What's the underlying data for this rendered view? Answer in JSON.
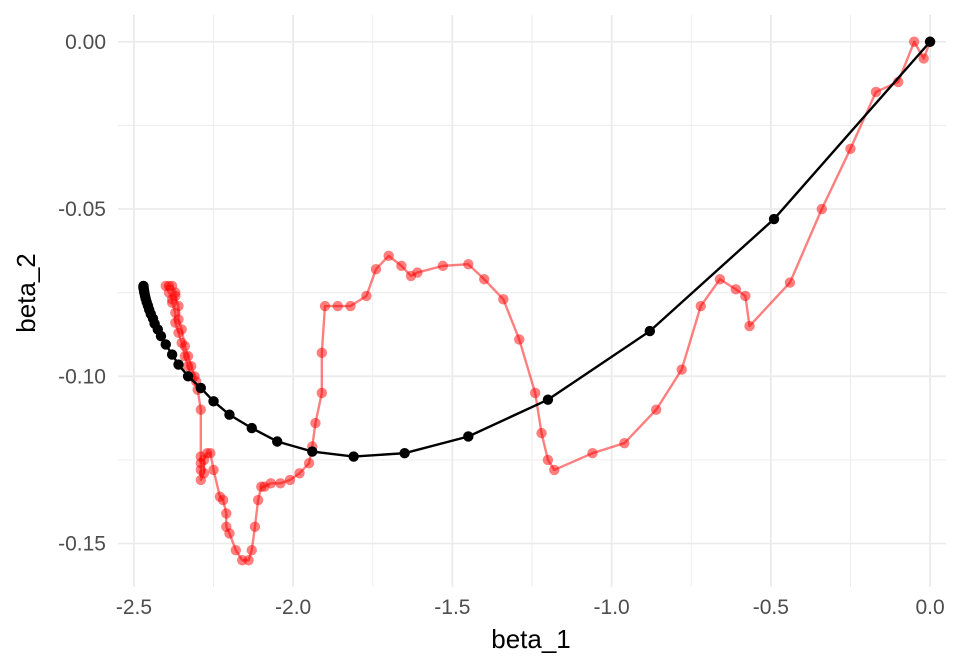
{
  "chart_data": {
    "type": "scatter",
    "xlabel": "beta_1",
    "ylabel": "beta_2",
    "xlim": [
      -2.55,
      0.05
    ],
    "ylim": [
      -0.163,
      0.008
    ],
    "x_ticks": [
      -2.5,
      -2.0,
      -1.5,
      -1.0,
      -0.5,
      0.0
    ],
    "x_tick_labels": [
      "-2.5",
      "-2.0",
      "-1.5",
      "-1.0",
      "-0.5",
      "0.0"
    ],
    "y_ticks": [
      0.0,
      -0.05,
      -0.1,
      -0.15
    ],
    "y_tick_labels": [
      "0.00",
      "-0.05",
      "-0.10",
      "-0.15"
    ],
    "grid": true,
    "legend": "none",
    "colors": {
      "red_series": "#ff0000",
      "black_series": "#000000",
      "grid": "#ebebeb"
    },
    "series": [
      {
        "style": "red-path-semitransparent",
        "points": [
          [
            0.0,
            0.0
          ],
          [
            -0.02,
            -0.005
          ],
          [
            -0.05,
            0.0
          ],
          [
            -0.1,
            -0.012
          ],
          [
            -0.17,
            -0.015
          ],
          [
            -0.25,
            -0.032
          ],
          [
            -0.34,
            -0.05
          ],
          [
            -0.44,
            -0.072
          ],
          [
            -0.567,
            -0.085
          ],
          [
            -0.58,
            -0.076
          ],
          [
            -0.61,
            -0.074
          ],
          [
            -0.66,
            -0.071
          ],
          [
            -0.72,
            -0.079
          ],
          [
            -0.78,
            -0.098
          ],
          [
            -0.86,
            -0.11
          ],
          [
            -0.96,
            -0.12
          ],
          [
            -1.06,
            -0.123
          ],
          [
            -1.18,
            -0.128
          ],
          [
            -1.2,
            -0.125
          ],
          [
            -1.22,
            -0.117
          ],
          [
            -1.24,
            -0.105
          ],
          [
            -1.29,
            -0.089
          ],
          [
            -1.34,
            -0.077
          ],
          [
            -1.4,
            -0.071
          ],
          [
            -1.45,
            -0.0665
          ],
          [
            -1.53,
            -0.067
          ],
          [
            -1.61,
            -0.069
          ],
          [
            -1.63,
            -0.07
          ],
          [
            -1.66,
            -0.067
          ],
          [
            -1.7,
            -0.064
          ],
          [
            -1.74,
            -0.068
          ],
          [
            -1.77,
            -0.076
          ],
          [
            -1.82,
            -0.079
          ],
          [
            -1.86,
            -0.079
          ],
          [
            -1.9,
            -0.079
          ],
          [
            -1.91,
            -0.093
          ],
          [
            -1.91,
            -0.105
          ],
          [
            -1.93,
            -0.114
          ],
          [
            -1.94,
            -0.121
          ],
          [
            -1.95,
            -0.126
          ],
          [
            -1.98,
            -0.129
          ],
          [
            -2.01,
            -0.131
          ],
          [
            -2.04,
            -0.132
          ],
          [
            -2.07,
            -0.132
          ],
          [
            -2.09,
            -0.133
          ],
          [
            -2.1,
            -0.133
          ],
          [
            -2.11,
            -0.137
          ],
          [
            -2.12,
            -0.145
          ],
          [
            -2.13,
            -0.152
          ],
          [
            -2.14,
            -0.155
          ],
          [
            -2.16,
            -0.155
          ],
          [
            -2.18,
            -0.152
          ],
          [
            -2.2,
            -0.147
          ],
          [
            -2.21,
            -0.145
          ],
          [
            -2.21,
            -0.141
          ],
          [
            -2.22,
            -0.137
          ],
          [
            -2.23,
            -0.136
          ],
          [
            -2.25,
            -0.128
          ],
          [
            -2.26,
            -0.123
          ],
          [
            -2.27,
            -0.123
          ],
          [
            -2.28,
            -0.125
          ],
          [
            -2.28,
            -0.129
          ],
          [
            -2.29,
            -0.131
          ],
          [
            -2.29,
            -0.128
          ],
          [
            -2.29,
            -0.126
          ],
          [
            -2.29,
            -0.124
          ],
          [
            -2.29,
            -0.11
          ],
          [
            -2.3,
            -0.104
          ],
          [
            -2.32,
            -0.1
          ],
          [
            -2.33,
            -0.097
          ],
          [
            -2.34,
            -0.094
          ],
          [
            -2.35,
            -0.09
          ],
          [
            -2.36,
            -0.087
          ],
          [
            -2.37,
            -0.084
          ],
          [
            -2.37,
            -0.081
          ],
          [
            -2.38,
            -0.078
          ],
          [
            -2.38,
            -0.077
          ],
          [
            -2.39,
            -0.075
          ],
          [
            -2.4,
            -0.073
          ],
          [
            -2.39,
            -0.073
          ],
          [
            -2.38,
            -0.073
          ],
          [
            -2.37,
            -0.075
          ],
          [
            -2.37,
            -0.076
          ],
          [
            -2.36,
            -0.079
          ],
          [
            -2.36,
            -0.083
          ],
          [
            -2.35,
            -0.086
          ],
          [
            -2.34,
            -0.091
          ],
          [
            -2.33,
            -0.094
          ],
          [
            -2.32,
            -0.097
          ],
          [
            -2.31,
            -0.1
          ],
          [
            -2.305,
            -0.1015
          ]
        ]
      },
      {
        "style": "black-path-opaque",
        "points": [
          [
            0.0,
            0.0
          ],
          [
            -0.49,
            -0.053
          ],
          [
            -0.88,
            -0.0865
          ],
          [
            -1.2,
            -0.107
          ],
          [
            -1.45,
            -0.118
          ],
          [
            -1.65,
            -0.123
          ],
          [
            -1.81,
            -0.124
          ],
          [
            -1.94,
            -0.1225
          ],
          [
            -2.05,
            -0.1195
          ],
          [
            -2.13,
            -0.1155
          ],
          [
            -2.2,
            -0.1115
          ],
          [
            -2.25,
            -0.1075
          ],
          [
            -2.29,
            -0.1035
          ],
          [
            -2.33,
            -0.1
          ],
          [
            -2.36,
            -0.0965
          ],
          [
            -2.38,
            -0.0935
          ],
          [
            -2.4,
            -0.0905
          ],
          [
            -2.415,
            -0.088
          ],
          [
            -2.425,
            -0.086
          ],
          [
            -2.435,
            -0.0843
          ],
          [
            -2.44,
            -0.0828
          ],
          [
            -2.447,
            -0.0814
          ],
          [
            -2.452,
            -0.0801
          ],
          [
            -2.456,
            -0.0789
          ],
          [
            -2.46,
            -0.0778
          ],
          [
            -2.463,
            -0.0768
          ],
          [
            -2.465,
            -0.076
          ],
          [
            -2.467,
            -0.0752
          ],
          [
            -2.468,
            -0.0746
          ],
          [
            -2.469,
            -0.074
          ],
          [
            -2.47,
            -0.0736
          ],
          [
            -2.47,
            -0.0733
          ],
          [
            -2.47,
            -0.073
          ]
        ]
      }
    ]
  }
}
